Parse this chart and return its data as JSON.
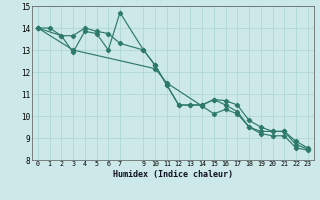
{
  "xlabel": "Humidex (Indice chaleur)",
  "bg_color": "#cce8e8",
  "line_color": "#2d7a6a",
  "grid_color": "#aad4d0",
  "ylim": [
    8,
    15
  ],
  "xlim": [
    -0.5,
    23.5
  ],
  "yticks": [
    8,
    9,
    10,
    11,
    12,
    13,
    14,
    15
  ],
  "xticks": [
    0,
    1,
    2,
    3,
    4,
    5,
    6,
    7,
    9,
    10,
    11,
    12,
    13,
    14,
    15,
    16,
    17,
    18,
    19,
    20,
    21,
    22,
    23
  ],
  "line1_x": [
    0,
    1,
    2,
    3,
    4,
    5,
    6,
    7,
    9,
    10,
    11,
    12,
    13,
    14,
    15,
    16,
    17,
    18,
    19,
    20,
    21,
    22,
    23
  ],
  "line1_y": [
    14.0,
    14.0,
    13.65,
    13.65,
    14.0,
    13.85,
    13.75,
    13.3,
    13.0,
    12.3,
    11.4,
    10.5,
    10.5,
    10.5,
    10.75,
    10.5,
    10.2,
    9.5,
    9.3,
    9.3,
    9.3,
    8.7,
    8.5
  ],
  "line2_x": [
    0,
    2,
    3,
    4,
    5,
    6,
    7,
    9,
    10,
    11,
    12,
    13,
    14,
    15,
    16,
    17,
    18,
    19,
    20,
    21,
    22,
    23
  ],
  "line2_y": [
    14.0,
    13.65,
    12.9,
    13.85,
    13.75,
    13.0,
    14.7,
    13.0,
    12.3,
    11.4,
    10.5,
    10.5,
    10.5,
    10.75,
    10.7,
    10.5,
    9.8,
    9.5,
    9.3,
    9.3,
    8.85,
    8.55
  ],
  "line3_x": [
    0,
    3,
    10,
    11,
    14,
    15,
    16,
    17,
    18,
    19,
    20,
    21,
    22,
    23
  ],
  "line3_y": [
    14.0,
    13.0,
    12.15,
    11.5,
    10.45,
    10.1,
    10.3,
    10.1,
    9.5,
    9.2,
    9.1,
    9.1,
    8.55,
    8.45
  ]
}
